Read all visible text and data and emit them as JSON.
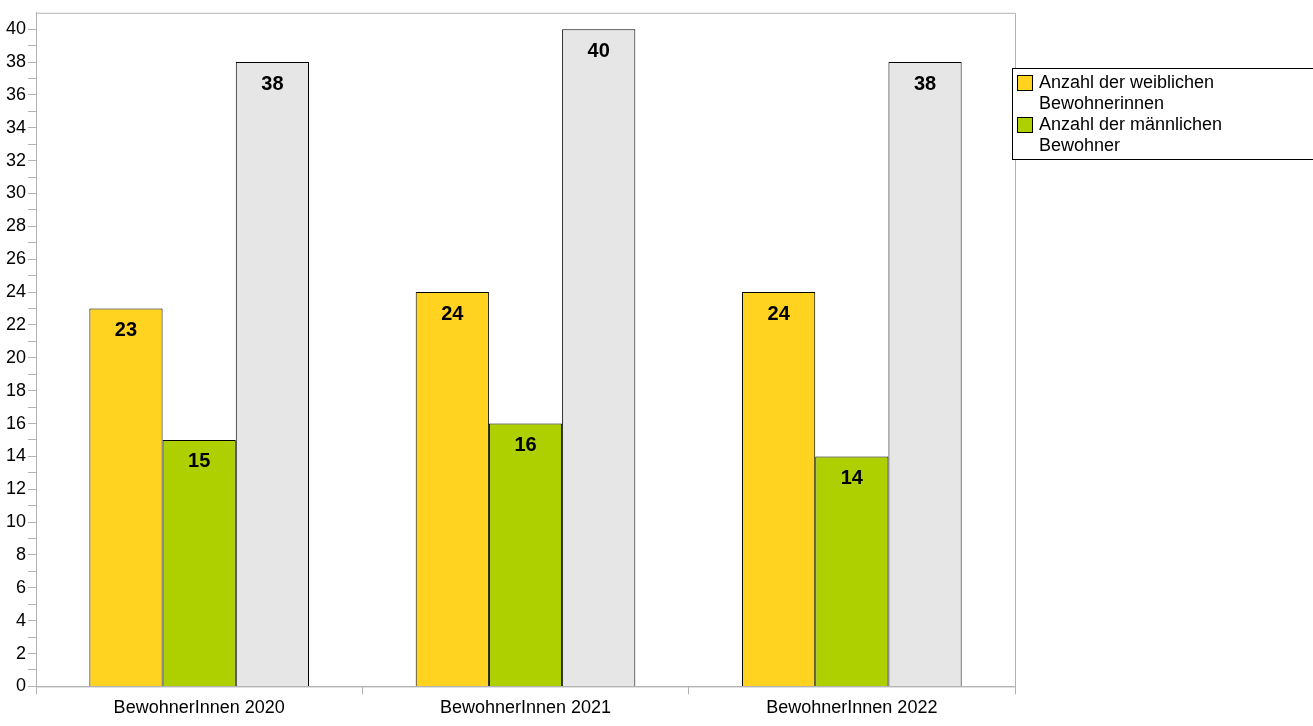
{
  "chart_data": {
    "type": "bar",
    "categories": [
      "BewohnerInnen 2020",
      "BewohnerInnen 2021",
      "BewohnerInnen 2022"
    ],
    "series": [
      {
        "name": "Anzahl der weiblichen Bewohnerinnen",
        "color": "#ffd320",
        "values": [
          23,
          24,
          24
        ]
      },
      {
        "name": "Anzahl der männlichen Bewohner",
        "color": "#aecf00",
        "values": [
          15,
          16,
          14
        ]
      },
      {
        "color": "#e6e6e6",
        "values": [
          38,
          40,
          38
        ]
      }
    ],
    "ylim": [
      0,
      41
    ],
    "yticks": [
      0,
      {
        "value": 1,
        "label": null
      },
      2,
      {
        "value": 3,
        "label": null
      },
      4,
      {
        "value": 5,
        "label": null
      },
      6,
      {
        "value": 7,
        "label": null
      },
      8,
      {
        "value": 9,
        "label": null
      },
      10,
      {
        "value": 11,
        "label": null
      },
      12,
      {
        "value": 13,
        "label": null
      },
      14,
      {
        "value": 15,
        "label": null
      },
      16,
      {
        "value": 17,
        "label": null
      },
      18,
      {
        "value": 19,
        "label": null
      },
      20,
      {
        "value": 21,
        "label": null
      },
      22,
      {
        "value": 23,
        "label": null
      },
      24,
      {
        "value": 25,
        "label": null
      },
      26,
      {
        "value": 27,
        "label": null
      },
      28,
      {
        "value": 29,
        "label": null
      },
      30,
      {
        "value": 31,
        "label": null
      },
      32,
      {
        "value": 33,
        "label": null
      },
      34,
      {
        "value": 35,
        "label": null
      },
      36,
      {
        "value": 37,
        "label": null
      },
      38,
      {
        "value": 39,
        "label": null
      },
      40
    ],
    "grid": false,
    "legend": "top right",
    "data_labels": true
  }
}
